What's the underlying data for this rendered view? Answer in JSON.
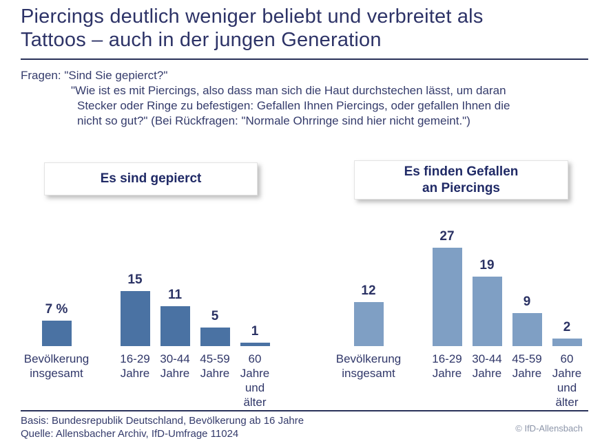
{
  "title": {
    "line1": "Piercings deutlich weniger beliebt und verbreitet als",
    "line2": "Tattoos – auch in der jungen Generation"
  },
  "questions": {
    "label": "Fragen:",
    "q1": "\"Sind Sie gepierct?\"",
    "q2_lines": [
      "\"Wie ist es mit Piercings, also dass man sich die Haut durchstechen lässt, um daran",
      "Stecker oder Ringe zu befestigen: Gefallen Ihnen Piercings, oder gefallen Ihnen die",
      "nicht so gut?\" (Bei Rückfragen: \"Normale Ohrringe sind hier nicht gemeint.\")"
    ]
  },
  "panels": {
    "left_header": "Es sind gepierct",
    "right_header_line1": "Es finden Gefallen",
    "right_header_line2": "an Piercings"
  },
  "chart_data": [
    {
      "type": "bar",
      "title": "Es sind gepierct",
      "categories": [
        "Bevölkerung insgesamt",
        "16-29 Jahre",
        "30-44 Jahre",
        "45-59 Jahre",
        "60 Jahre und älter"
      ],
      "category_lines": [
        [
          "Bevölkerung",
          "insgesamt"
        ],
        [
          "16-29",
          "Jahre"
        ],
        [
          "30-44",
          "Jahre"
        ],
        [
          "45-59",
          "Jahre"
        ],
        [
          "60",
          "Jahre",
          "und",
          "älter"
        ]
      ],
      "values": [
        7,
        15,
        11,
        5,
        1
      ],
      "value_labels": [
        "7 %",
        "15",
        "11",
        "5",
        "1"
      ],
      "unit": "percent",
      "bar_color": "#4a72a3",
      "ylim": [
        0,
        30
      ],
      "grid": false,
      "legend": false
    },
    {
      "type": "bar",
      "title": "Es finden Gefallen an Piercings",
      "categories": [
        "Bevölkerung insgesamt",
        "16-29 Jahre",
        "30-44 Jahre",
        "45-59 Jahre",
        "60 Jahre und älter"
      ],
      "category_lines": [
        [
          "Bevölkerung",
          "insgesamt"
        ],
        [
          "16-29",
          "Jahre"
        ],
        [
          "30-44",
          "Jahre"
        ],
        [
          "45-59",
          "Jahre"
        ],
        [
          "60",
          "Jahre",
          "und",
          "älter"
        ]
      ],
      "values": [
        12,
        27,
        19,
        9,
        2
      ],
      "value_labels": [
        "12",
        "27",
        "19",
        "9",
        "2"
      ],
      "unit": "percent",
      "bar_color": "#7f9fc4",
      "ylim": [
        0,
        30
      ],
      "grid": false,
      "legend": false
    }
  ],
  "footer": {
    "basis": "Basis: Bundesrepublik Deutschland, Bevölkerung ab 16 Jahre",
    "quelle": "Quelle: Allensbacher Archiv, IfD-Umfrage 11024",
    "copyright": "© IfD-Allensbach"
  },
  "colors": {
    "navy_text": "#2d3367",
    "left_bar": "#4a72a3",
    "right_bar": "#7f9fc4",
    "copyright_gray": "#8c95a9",
    "rule": "#283058"
  }
}
